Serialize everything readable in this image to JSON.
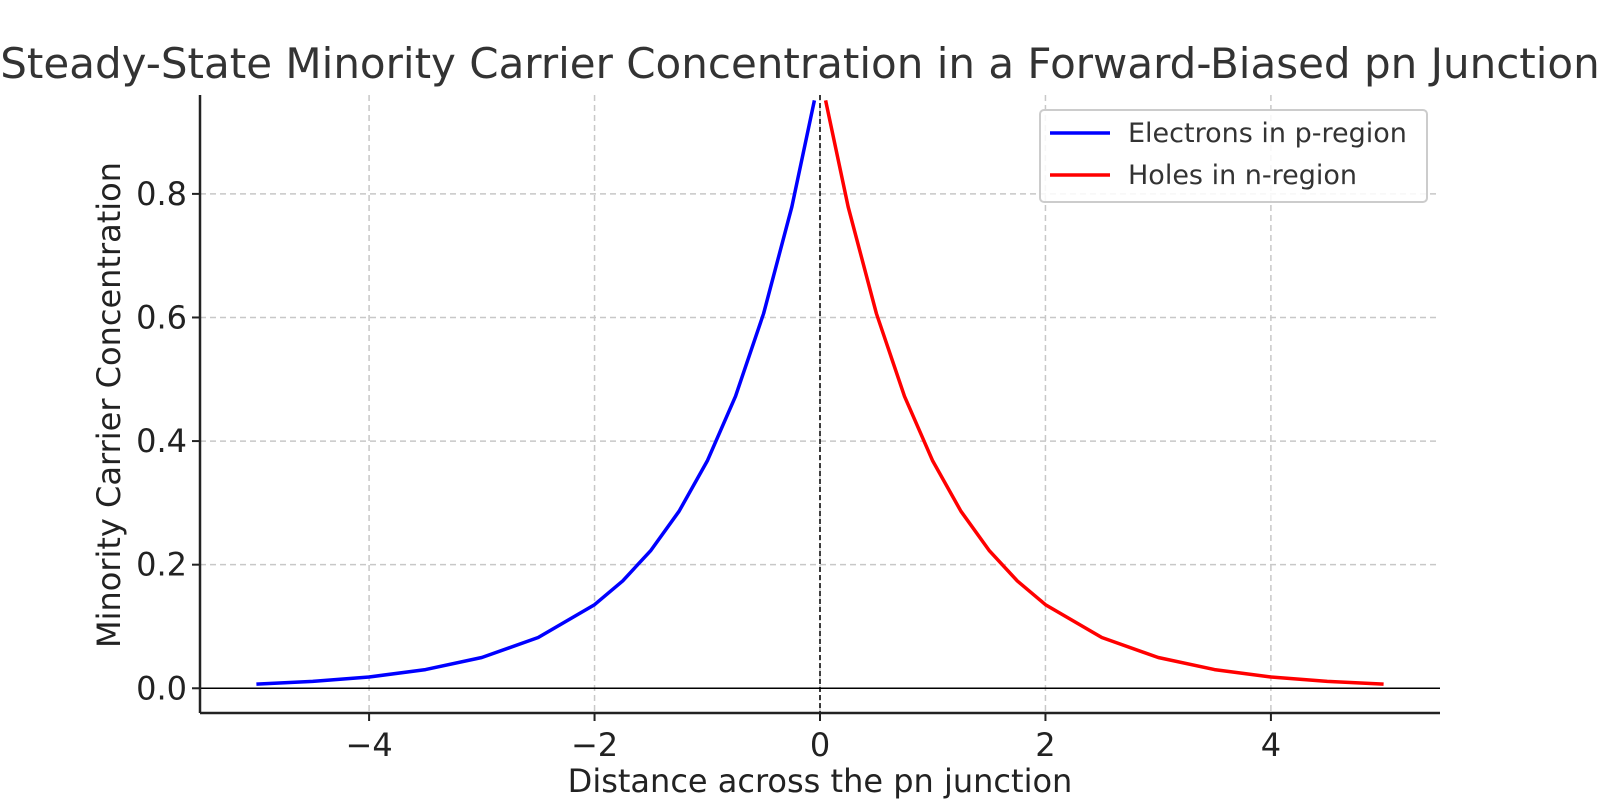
{
  "chart_data": {
    "type": "line",
    "title": "Steady-State Minority Carrier Concentration in a Forward-Biased pn Junction",
    "xlabel": "Distance across the pn junction",
    "ylabel": "Minority Carrier Concentration",
    "xlim": [
      -5.5,
      5.5
    ],
    "ylim": [
      -0.04,
      0.96
    ],
    "x_ticks": [
      -4,
      -2,
      0,
      2,
      4
    ],
    "x_tick_labels": [
      "−4",
      "−2",
      "0",
      "2",
      "4"
    ],
    "y_ticks": [
      0.0,
      0.2,
      0.4,
      0.6,
      0.8
    ],
    "y_tick_labels": [
      "0.0",
      "0.2",
      "0.4",
      "0.6",
      "0.8"
    ],
    "grid": true,
    "legend_position": "top-right",
    "reference_lines": {
      "horizontal_y": 0,
      "vertical_x": 0
    },
    "series": [
      {
        "name": "Electrons in p-region",
        "color": "#0000ff",
        "x": [
          -5.0,
          -4.5,
          -4.0,
          -3.5,
          -3.0,
          -2.5,
          -2.0,
          -1.75,
          -1.5,
          -1.25,
          -1.0,
          -0.75,
          -0.5,
          -0.25,
          -0.05
        ],
        "y": [
          0.0067,
          0.0111,
          0.0183,
          0.0302,
          0.0498,
          0.0821,
          0.1353,
          0.1738,
          0.2231,
          0.2865,
          0.3679,
          0.4724,
          0.6065,
          0.7788,
          0.9512
        ]
      },
      {
        "name": "Holes in n-region",
        "color": "#ff0000",
        "x": [
          0.05,
          0.25,
          0.5,
          0.75,
          1.0,
          1.25,
          1.5,
          1.75,
          2.0,
          2.5,
          3.0,
          3.5,
          4.0,
          4.5,
          5.0
        ],
        "y": [
          0.9512,
          0.7788,
          0.6065,
          0.4724,
          0.3679,
          0.2865,
          0.2231,
          0.1738,
          0.1353,
          0.0821,
          0.0498,
          0.0302,
          0.0183,
          0.0111,
          0.0067
        ]
      }
    ]
  }
}
